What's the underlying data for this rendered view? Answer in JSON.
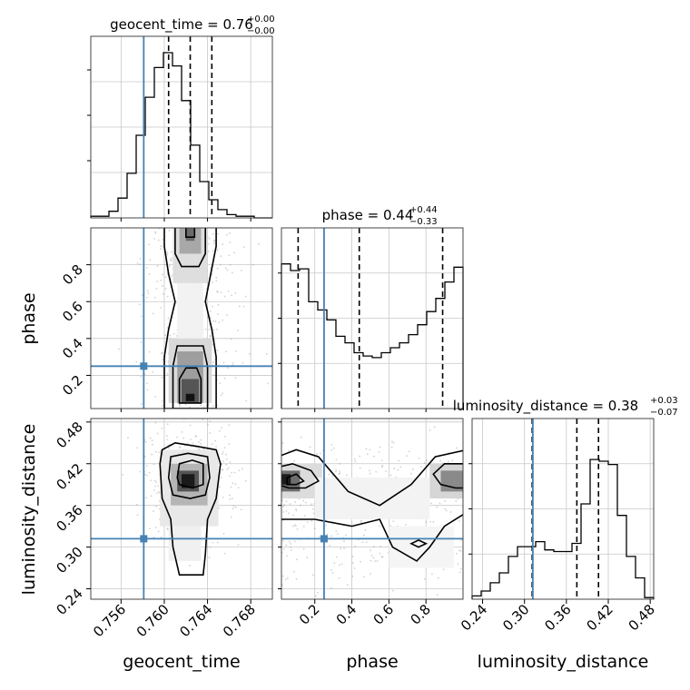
{
  "chart_data": {
    "type": "corner",
    "parameters": [
      {
        "name": "geocent_time",
        "xlabel": "geocent_time",
        "title": "geocent_time = 0.76",
        "title_sup": "+0.00",
        "title_sub": "−0.00",
        "range": [
          0.7532,
          0.77
        ],
        "ticks": [
          0.756,
          0.76,
          0.764,
          0.768
        ],
        "tick_labels": [
          "0.756",
          "0.760",
          "0.764",
          "0.768"
        ],
        "truth": 0.7581,
        "quantiles": [
          0.7604,
          0.7624,
          0.7644
        ],
        "hist": [
          0.01,
          0.01,
          0.04,
          0.12,
          0.27,
          0.5,
          0.73,
          0.91,
          1.0,
          0.92,
          0.71,
          0.44,
          0.22,
          0.11,
          0.05,
          0.02,
          0.01,
          0.01,
          0.0,
          0.0
        ]
      },
      {
        "name": "phase",
        "xlabel": "phase",
        "ylabel": "phase",
        "title": "phase = 0.44",
        "title_sup": "+0.44",
        "title_sub": "−0.33",
        "range": [
          0.02,
          1.0
        ],
        "ticks": [
          0.2,
          0.4,
          0.6,
          0.8
        ],
        "tick_labels": [
          "0.2",
          "0.4",
          "0.6",
          "0.8"
        ],
        "truth": 0.25,
        "quantiles": [
          0.11,
          0.44,
          0.89
        ],
        "hist": [
          0.88,
          0.84,
          0.85,
          0.65,
          0.6,
          0.54,
          0.44,
          0.4,
          0.34,
          0.32,
          0.31,
          0.34,
          0.37,
          0.4,
          0.45,
          0.51,
          0.59,
          0.67,
          0.77,
          0.86
        ]
      },
      {
        "name": "luminosity_distance",
        "xlabel": "luminosity_distance",
        "ylabel": "luminosity_distance",
        "title": "luminosity_distance = 0.38",
        "title_sup": "+0.03",
        "title_sub": "−0.07",
        "range": [
          0.225,
          0.485
        ],
        "ticks": [
          0.24,
          0.3,
          0.36,
          0.42,
          0.48
        ],
        "tick_labels": [
          "0.24",
          "0.30",
          "0.36",
          "0.42",
          "0.48"
        ],
        "truth": 0.312,
        "quantiles": [
          0.311,
          0.375,
          0.406
        ],
        "hist": [
          0.02,
          0.05,
          0.1,
          0.16,
          0.26,
          0.32,
          0.32,
          0.35,
          0.3,
          0.29,
          0.29,
          0.34,
          0.58,
          0.85,
          0.84,
          0.82,
          0.51,
          0.26,
          0.13,
          0.01
        ]
      }
    ],
    "truth_color": "#4682b4",
    "grid": true
  }
}
